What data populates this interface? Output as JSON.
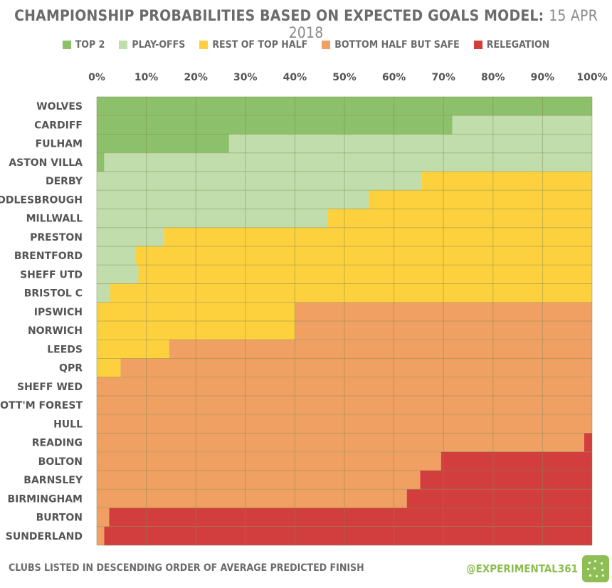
{
  "title": "CHAMPIONSHIP PROBABILITIES BASED ON EXPECTED GOALS MODEL:",
  "date": "15 APR 2018",
  "footer": {
    "note": "CLUBS LISTED IN DESCENDING ORDER OF AVERAGE PREDICTED FINISH",
    "handle": "@EXPERIMENTAL361"
  },
  "legend": [
    {
      "label": "TOP 2",
      "color": "#8dc06a"
    },
    {
      "label": "PLAY-OFFS",
      "color": "#c0ddab"
    },
    {
      "label": "REST OF TOP HALF",
      "color": "#fdd03d"
    },
    {
      "label": "BOTTOM HALF BUT SAFE",
      "color": "#f1a064"
    },
    {
      "label": "RELEGATION",
      "color": "#d23e3e"
    }
  ],
  "chart_data": {
    "type": "bar",
    "orientation": "horizontal",
    "stacked": true,
    "title": "CHAMPIONSHIP PROBABILITIES BASED ON EXPECTED GOALS MODEL: 15 APR 2018",
    "xlabel": "",
    "ylabel": "",
    "xlim": [
      0,
      100
    ],
    "xticks": [
      "0%",
      "10%",
      "20%",
      "30%",
      "40%",
      "50%",
      "60%",
      "70%",
      "80%",
      "90%",
      "100%"
    ],
    "grid": true,
    "legend_position": "top",
    "categories": [
      "WOLVES",
      "CARDIFF",
      "FULHAM",
      "ASTON VILLA",
      "DERBY",
      "MIDDLESBROUGH",
      "MILLWALL",
      "PRESTON",
      "BRENTFORD",
      "SHEFF UTD",
      "BRISTOL C",
      "IPSWICH",
      "NORWICH",
      "LEEDS",
      "QPR",
      "SHEFF WED",
      "NOTT'M FOREST",
      "HULL",
      "READING",
      "BOLTON",
      "BARNSLEY",
      "BIRMINGHAM",
      "BURTON",
      "SUNDERLAND"
    ],
    "series": [
      {
        "name": "TOP 2",
        "values": [
          100,
          71.8,
          26.7,
          1.5,
          0,
          0,
          0,
          0,
          0,
          0,
          0,
          0,
          0,
          0,
          0,
          0,
          0,
          0,
          0,
          0,
          0,
          0,
          0,
          0
        ]
      },
      {
        "name": "PLAY-OFFS",
        "values": [
          0,
          28.2,
          73.3,
          98.5,
          65.6,
          54.9,
          46.7,
          13.6,
          7.9,
          8.4,
          2.7,
          0,
          0,
          0,
          0,
          0,
          0,
          0,
          0,
          0,
          0,
          0,
          0,
          0
        ]
      },
      {
        "name": "REST OF TOP HALF",
        "values": [
          0,
          0,
          0,
          0,
          34.4,
          45.1,
          53.3,
          86.4,
          92.1,
          91.6,
          97.3,
          40,
          40,
          14.6,
          4.8,
          0,
          0,
          0,
          0,
          0,
          0,
          0,
          0,
          0
        ]
      },
      {
        "name": "BOTTOM HALF BUT SAFE",
        "values": [
          0,
          0,
          0,
          0,
          0,
          0,
          0,
          0,
          0,
          0,
          0,
          60,
          60,
          85.4,
          95.2,
          100,
          100,
          100,
          98.4,
          69.5,
          65.3,
          62.6,
          2.5,
          1.5
        ]
      },
      {
        "name": "RELEGATION",
        "values": [
          0,
          0,
          0,
          0,
          0,
          0,
          0,
          0,
          0,
          0,
          0,
          0,
          0,
          0,
          0,
          0,
          0,
          0,
          1.6,
          30.5,
          34.7,
          37.4,
          97.5,
          98.5
        ]
      }
    ]
  }
}
